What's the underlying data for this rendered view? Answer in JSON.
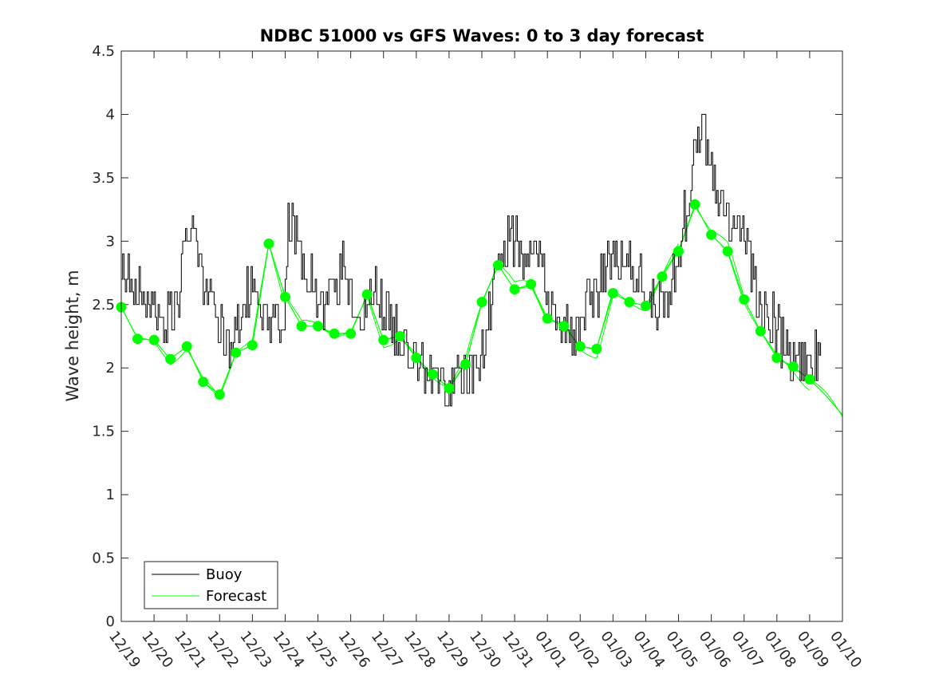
{
  "chart_data": {
    "type": "line",
    "title": "NDBC 51000 vs GFS Waves: 0 to 3 day forecast",
    "ylabel": "Wave height, m",
    "xlabel": "",
    "ylim": [
      0,
      4.5
    ],
    "yticks": [
      0,
      0.5,
      1,
      1.5,
      2,
      2.5,
      3,
      3.5,
      4,
      4.5
    ],
    "ytick_labels": [
      "0",
      "0.5",
      "1",
      "1.5",
      "2",
      "2.5",
      "3",
      "3.5",
      "4",
      "4.5"
    ],
    "xtick_labels": [
      "12/19",
      "12/20",
      "12/21",
      "12/22",
      "12/23",
      "12/24",
      "12/25",
      "12/26",
      "12/27",
      "12/28",
      "12/29",
      "12/30",
      "12/31",
      "01/01",
      "01/02",
      "01/03",
      "01/04",
      "01/05",
      "01/06",
      "01/07",
      "01/08",
      "01/09",
      "01/10"
    ],
    "legend": {
      "location": "bottom-left",
      "entries": [
        "Buoy",
        "Forecast"
      ]
    },
    "colors": {
      "buoy": "#000000",
      "forecast": "#00ff00",
      "axes": "#262626"
    },
    "series": [
      {
        "name": "Buoy",
        "x_day": [
          0,
          0.25,
          0.5,
          0.75,
          1.0,
          1.25,
          1.5,
          1.75,
          2.0,
          2.25,
          2.5,
          2.75,
          3.0,
          3.25,
          3.5,
          3.75,
          4.0,
          4.25,
          4.5,
          4.75,
          5.0,
          5.1,
          5.25,
          5.5,
          5.75,
          6.0,
          6.25,
          6.5,
          6.75,
          7.0,
          7.25,
          7.5,
          7.75,
          8.0,
          8.25,
          8.5,
          8.75,
          9.0,
          9.25,
          9.5,
          9.75,
          10.0,
          10.25,
          10.5,
          10.75,
          11.0,
          11.25,
          11.5,
          11.75,
          12.0,
          12.25,
          12.5,
          12.75,
          13.0,
          13.25,
          13.5,
          13.75,
          14.0,
          14.25,
          14.5,
          14.75,
          15.0,
          15.25,
          15.5,
          15.75,
          16.0,
          16.25,
          16.5,
          16.75,
          17.0,
          17.25,
          17.5,
          17.75,
          18.0,
          18.25,
          18.5,
          18.75,
          19.0,
          19.25,
          19.5,
          19.75,
          20.0,
          20.25,
          20.5,
          20.75,
          21.0,
          21.25,
          21.35
        ],
        "y": [
          2.85,
          2.75,
          2.6,
          2.5,
          2.4,
          2.3,
          2.4,
          2.6,
          3.0,
          3.1,
          2.7,
          2.5,
          2.3,
          2.2,
          2.3,
          2.55,
          2.6,
          2.45,
          2.35,
          2.3,
          2.6,
          3.2,
          3.1,
          2.85,
          2.7,
          2.55,
          2.55,
          2.7,
          2.8,
          2.55,
          2.35,
          2.45,
          2.6,
          2.5,
          2.35,
          2.25,
          2.2,
          2.1,
          2.0,
          1.95,
          1.9,
          1.85,
          1.9,
          1.95,
          2.0,
          2.1,
          2.5,
          2.8,
          3.0,
          3.0,
          2.95,
          3.0,
          2.9,
          2.6,
          2.45,
          2.3,
          2.25,
          2.3,
          2.5,
          2.6,
          2.8,
          2.9,
          2.8,
          2.8,
          2.75,
          2.55,
          2.5,
          2.5,
          2.6,
          2.9,
          3.3,
          3.65,
          3.9,
          3.6,
          3.3,
          3.2,
          3.1,
          3.0,
          2.75,
          2.5,
          2.4,
          2.3,
          2.15,
          2.05,
          2.05,
          2.0,
          2.1,
          2.2
        ]
      },
      {
        "name": "Forecast",
        "x_day": [
          0,
          0.5,
          1.0,
          1.5,
          2.0,
          2.5,
          3.0,
          3.5,
          4.0,
          4.5,
          5.0,
          5.5,
          6.0,
          6.5,
          7.0,
          7.5,
          8.0,
          8.5,
          9.0,
          9.5,
          10.0,
          10.5,
          11.0,
          11.5,
          12.0,
          12.5,
          13.0,
          13.5,
          14.0,
          14.5,
          15.0,
          15.5,
          16.0,
          16.5,
          17.0,
          17.5,
          18.0,
          18.5,
          19.0,
          19.5,
          20.0,
          20.5,
          21.0,
          21.5,
          22.0
        ],
        "y": [
          2.48,
          2.23,
          2.22,
          2.07,
          2.17,
          1.89,
          1.79,
          2.12,
          2.18,
          2.98,
          2.56,
          2.33,
          2.33,
          2.27,
          2.27,
          2.58,
          2.22,
          2.25,
          2.08,
          1.95,
          1.84,
          2.03,
          2.52,
          2.81,
          2.62,
          2.66,
          2.39,
          2.33,
          2.17,
          2.15,
          2.59,
          2.52,
          2.49,
          2.72,
          2.92,
          3.29,
          3.05,
          2.92,
          2.54,
          2.29,
          2.08,
          2.01,
          1.91,
          1.78,
          1.63
        ]
      }
    ]
  }
}
